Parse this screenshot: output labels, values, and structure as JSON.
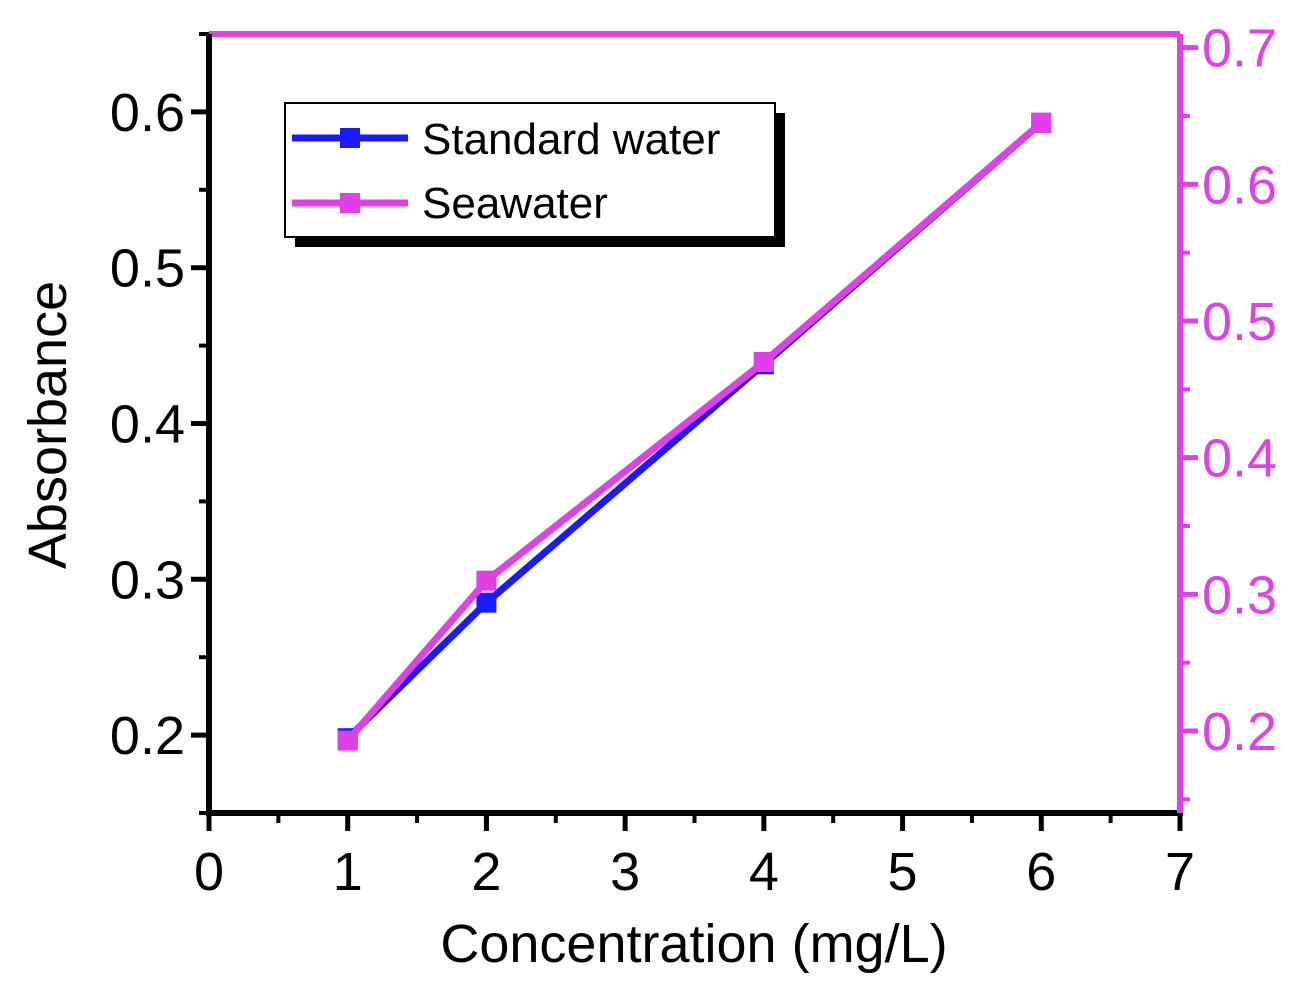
{
  "chart_data": {
    "type": "line",
    "title": "",
    "xlabel": "Concentration (mg/L)",
    "ylabel": "Absorbance",
    "y2label": "",
    "xlim": [
      0,
      7
    ],
    "ylim": [
      0.15,
      0.65
    ],
    "y2lim": [
      0.14,
      0.71
    ],
    "x_ticks": [
      "0",
      "1",
      "2",
      "3",
      "4",
      "5",
      "6",
      "7"
    ],
    "y_ticks": [
      "0.2",
      "0.3",
      "0.4",
      "0.5",
      "0.6"
    ],
    "y2_ticks": [
      "0.2",
      "0.3",
      "0.4",
      "0.5",
      "0.6",
      "0.7"
    ],
    "grid": false,
    "legend_position": "top-left",
    "series": [
      {
        "name": "Standard water",
        "axis": "left",
        "color": "#1a1aff",
        "marker": "square",
        "x": [
          1,
          2,
          4,
          6
        ],
        "y": [
          0.198,
          0.285,
          0.438,
          0.593
        ]
      },
      {
        "name": "Seawater",
        "axis": "right",
        "color": "#e040e8",
        "marker": "square",
        "x": [
          1,
          2,
          4,
          6
        ],
        "y": [
          0.193,
          0.31,
          0.47,
          0.645
        ]
      }
    ]
  },
  "colors": {
    "left_axis": "#000000",
    "right_axis": "#e040e8",
    "background": "#ffffff"
  }
}
